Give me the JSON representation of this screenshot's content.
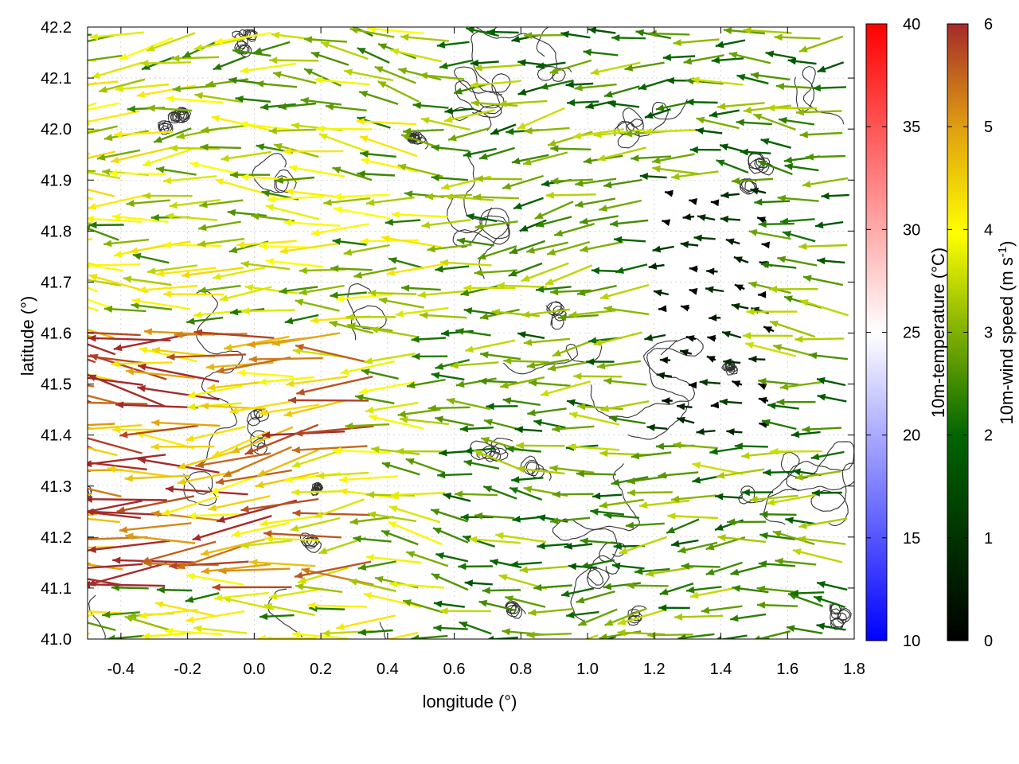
{
  "chart_data": {
    "type": "vector_field",
    "xlabel": "longitude (°)",
    "ylabel": "latitude (°)",
    "xlim": [
      -0.5,
      1.8
    ],
    "ylim": [
      41.0,
      42.2
    ],
    "xticks": [
      "-0.4",
      "-0.2",
      "0.0",
      "0.2",
      "0.4",
      "0.6",
      "0.8",
      "1.0",
      "1.2",
      "1.4",
      "1.6",
      "1.8"
    ],
    "yticks": [
      "41.0",
      "41.1",
      "41.2",
      "41.3",
      "41.4",
      "41.5",
      "41.6",
      "41.7",
      "41.8",
      "41.9",
      "42.0",
      "42.1",
      "42.2"
    ],
    "grid": true,
    "overlays": [
      "terrain contours (grey)",
      "10m-wind vectors coloured by speed"
    ],
    "wind_field_summary": {
      "dominant_direction": "easterly (arrows point west)",
      "strongest_region": "western lowlands, lon -0.5 to 0.4, lat 41.1 to 41.6",
      "strongest_speed": 6,
      "weakest_region": "eastern interior, lon 1.2 to 1.6, lat 41.4 to 41.9"
    },
    "colorbars": [
      {
        "label": "10m-temperature (°C)",
        "range": [
          10,
          40
        ],
        "ticks": [
          "10",
          "15",
          "20",
          "25",
          "30",
          "35",
          "40"
        ],
        "colors": [
          "#0000ff",
          "#ffffff",
          "#ff0000"
        ]
      },
      {
        "label": "10m-wind speed (m s",
        "label_sup": "-1",
        "label_end": ")",
        "range": [
          0,
          6
        ],
        "ticks": [
          "0",
          "1",
          "2",
          "3",
          "4",
          "5",
          "6"
        ],
        "colors": [
          "#000000",
          "#006400",
          "#80b000",
          "#ffff00",
          "#e0a010",
          "#a52a2a"
        ]
      }
    ]
  }
}
